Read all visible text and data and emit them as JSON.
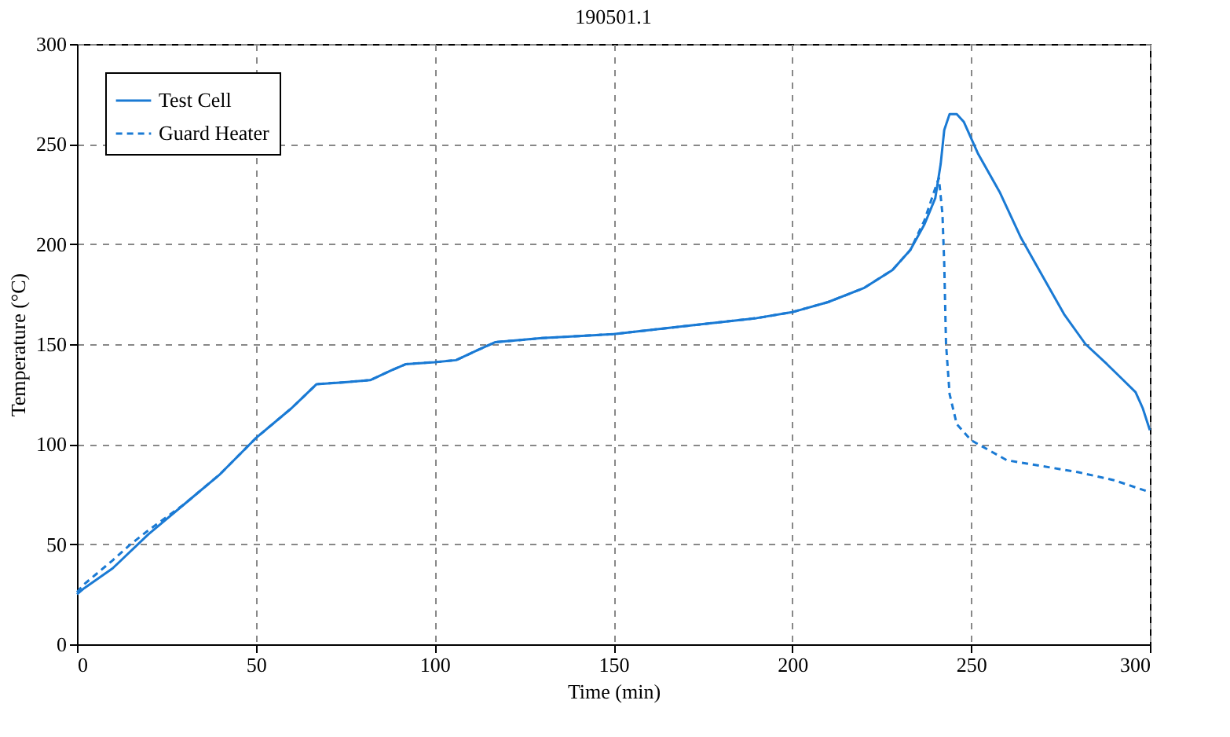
{
  "chart_data": {
    "type": "line",
    "title": "190501.1",
    "xlabel": "Time (min)",
    "ylabel": "Temperature (°C)",
    "xlim": [
      0,
      300
    ],
    "xticks": [
      0,
      50,
      100,
      150,
      200,
      250,
      300
    ],
    "ylim": [
      0,
      300
    ],
    "yticks": [
      0,
      50,
      100,
      150,
      200,
      250,
      300
    ],
    "grid": true,
    "legend": "top left",
    "series": [
      {
        "name": "Test Cell",
        "color": "#1a7ad4",
        "line_style": "solid",
        "x": [
          0,
          2,
          10,
          20,
          30,
          40,
          50,
          60,
          67,
          75,
          82,
          88,
          92,
          100,
          106,
          112,
          117,
          130,
          150,
          170,
          190,
          200,
          210,
          220,
          228,
          233,
          237,
          240,
          241.5,
          242.5,
          244,
          246,
          248,
          252,
          258,
          264,
          270,
          276,
          282,
          288,
          292,
          296,
          298,
          300
        ],
        "values": [
          25,
          28,
          38,
          55,
          70,
          85,
          103,
          118,
          130,
          131,
          132,
          137,
          140,
          141,
          142,
          147,
          151,
          153,
          155,
          159,
          163,
          166,
          171,
          178,
          187,
          197,
          210,
          223,
          240,
          257,
          265,
          265,
          261,
          245,
          226,
          203,
          184,
          165,
          150,
          140,
          133,
          126,
          118,
          107
        ]
      },
      {
        "name": "Guard Heater",
        "color": "#1a7ad4",
        "line_style": "dashed",
        "x": [
          0,
          2,
          10,
          15,
          20,
          30,
          40,
          50,
          60,
          67,
          75,
          82,
          88,
          92,
          100,
          106,
          112,
          117,
          130,
          150,
          170,
          190,
          200,
          210,
          220,
          228,
          233,
          237,
          240,
          241,
          242,
          242.5,
          243,
          244,
          246,
          250,
          255,
          260,
          270,
          280,
          290,
          300
        ],
        "values": [
          26,
          30,
          42,
          50,
          57,
          70,
          85,
          103,
          118,
          130,
          131,
          132,
          137,
          140,
          141,
          142,
          147,
          151,
          153,
          155,
          159,
          163,
          166,
          171,
          178,
          187,
          197,
          212,
          228,
          233,
          215,
          190,
          150,
          125,
          110,
          102,
          97,
          92,
          89,
          86,
          82,
          76
        ]
      }
    ]
  }
}
